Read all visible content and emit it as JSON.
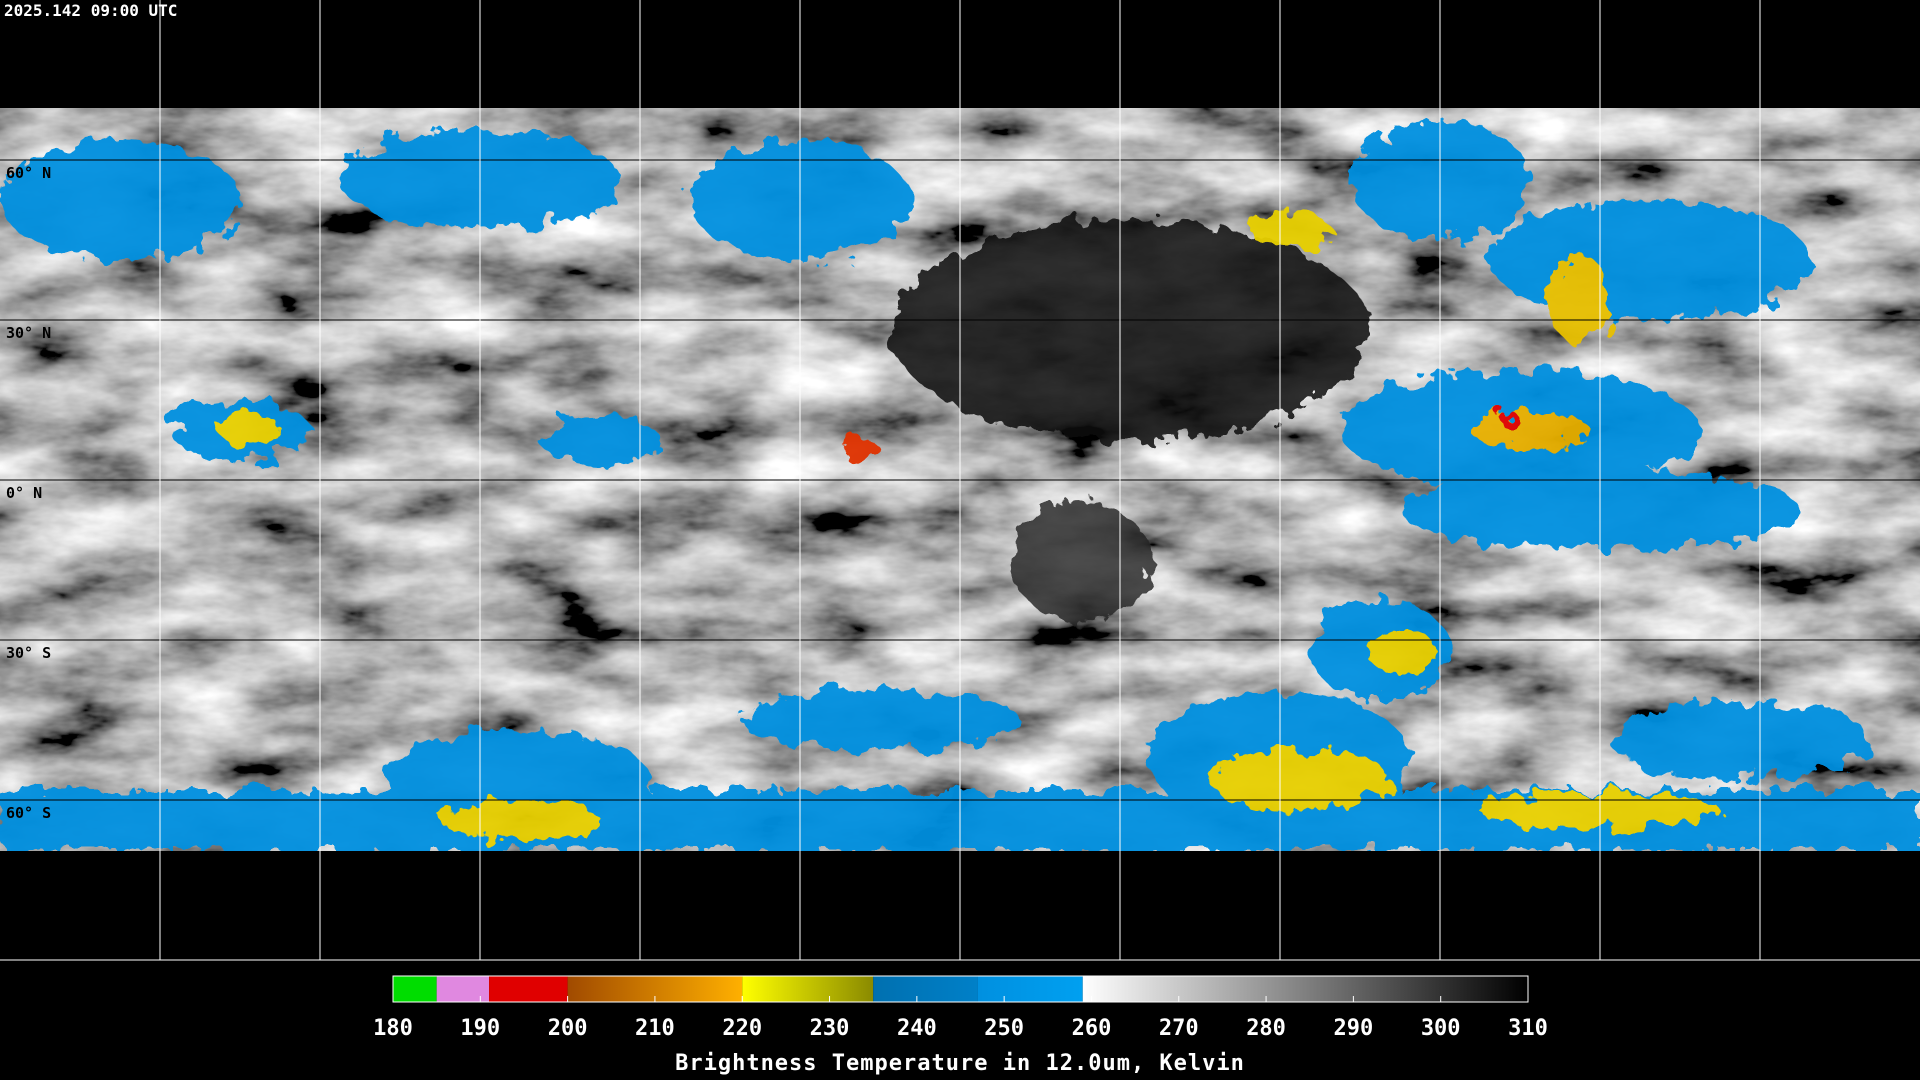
{
  "timestamp": "2025.142 09:00 UTC",
  "latitude_labels": [
    "60° N",
    "30° N",
    "0° N",
    "30° S",
    "60° S"
  ],
  "colorbar": {
    "title": "Brightness Temperature in 12.0um, Kelvin",
    "range": [
      180,
      310
    ],
    "ticks": [
      180,
      190,
      200,
      210,
      220,
      230,
      240,
      250,
      260,
      270,
      280,
      290,
      300,
      310
    ],
    "segments": [
      {
        "from": 180,
        "to": 185,
        "colors": [
          "#00dd00",
          "#00dd00"
        ]
      },
      {
        "from": 185,
        "to": 191,
        "colors": [
          "#e088e0",
          "#e088e0"
        ]
      },
      {
        "from": 191,
        "to": 200,
        "colors": [
          "#e00000",
          "#e00000"
        ]
      },
      {
        "from": 200,
        "to": 220,
        "colors": [
          "#a04a00",
          "#ffb000"
        ]
      },
      {
        "from": 220,
        "to": 235,
        "colors": [
          "#ffff00",
          "#8a8a00"
        ]
      },
      {
        "from": 235,
        "to": 247,
        "colors": [
          "#0070b0",
          "#0080c8"
        ]
      },
      {
        "from": 247,
        "to": 259,
        "colors": [
          "#0090e0",
          "#00a0f0"
        ]
      },
      {
        "from": 259,
        "to": 310,
        "colors": [
          "#ffffff",
          "#000000"
        ]
      }
    ]
  }
}
